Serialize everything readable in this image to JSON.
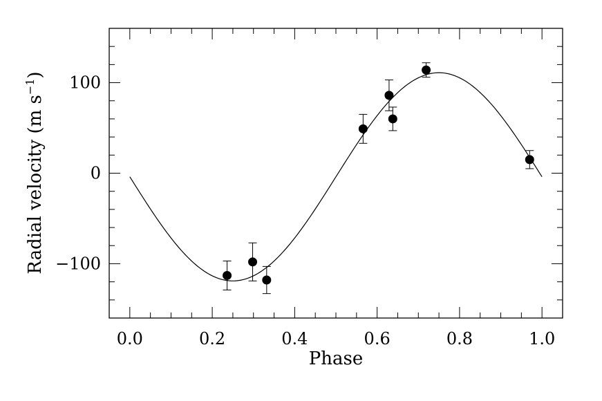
{
  "chart_data": {
    "type": "scatter",
    "xlabel": "Phase",
    "ylabel_main": "Radial velocity (m s",
    "ylabel_sup": "−1",
    "ylabel_close": ")",
    "xlim": [
      -0.05,
      1.05
    ],
    "ylim": [
      -160,
      160
    ],
    "grid": false,
    "x_ticks": [
      {
        "value": 0.0,
        "label": "0.0"
      },
      {
        "value": 0.2,
        "label": "0.2"
      },
      {
        "value": 0.4,
        "label": "0.4"
      },
      {
        "value": 0.6,
        "label": "0.6"
      },
      {
        "value": 0.8,
        "label": "0.8"
      },
      {
        "value": 1.0,
        "label": "1.0"
      }
    ],
    "y_ticks": [
      {
        "value": -100,
        "label": "−100"
      },
      {
        "value": 0,
        "label": "0"
      },
      {
        "value": 100,
        "label": "100"
      }
    ],
    "x_minor_step": 0.05,
    "y_minor_step": 20,
    "points": [
      {
        "x": 0.236,
        "y": -113,
        "err": 16
      },
      {
        "x": 0.298,
        "y": -98,
        "err": 21
      },
      {
        "x": 0.332,
        "y": -118,
        "err": 15
      },
      {
        "x": 0.566,
        "y": 49,
        "err": 16
      },
      {
        "x": 0.629,
        "y": 86,
        "err": 17
      },
      {
        "x": 0.638,
        "y": 60,
        "err": 13
      },
      {
        "x": 0.719,
        "y": 114,
        "err": 8
      },
      {
        "x": 0.97,
        "y": 15,
        "err": 10
      }
    ],
    "fit": {
      "type": "sine",
      "amplitude": 115,
      "offset": -4,
      "phase_range": [
        0.0,
        1.0
      ]
    }
  }
}
